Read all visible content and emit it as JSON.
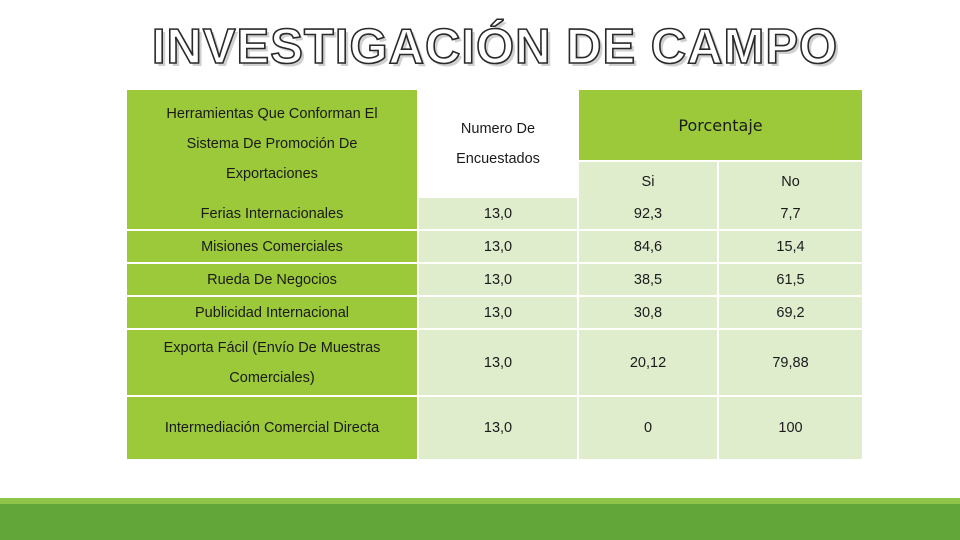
{
  "title": "INVESTIGACIÓN DE CAMPO",
  "table": {
    "header": {
      "tool_lines": [
        "Herramientas Que Conforman El",
        "Sistema De Promoción De",
        "Exportaciones"
      ],
      "count_lines": [
        "Numero De",
        "Encuestados"
      ],
      "percent": "Porcentaje",
      "yes": "Si",
      "no": "No"
    },
    "rows": [
      {
        "name_lines": [
          "Ferias Internacionales"
        ],
        "count": "13,0",
        "yes": "92,3",
        "no": "7,7"
      },
      {
        "name_lines": [
          "Misiones Comerciales"
        ],
        "count": "13,0",
        "yes": "84,6",
        "no": "15,4"
      },
      {
        "name_lines": [
          "Rueda De Negocios"
        ],
        "count": "13,0",
        "yes": "38,5",
        "no": "61,5"
      },
      {
        "name_lines": [
          "Publicidad Internacional"
        ],
        "count": "13,0",
        "yes": "30,8",
        "no": "69,2"
      },
      {
        "name_lines": [
          "Exporta Fácil (Envío De Muestras",
          "Comerciales)"
        ],
        "count": "13,0",
        "yes": "20,12",
        "no": "79,88"
      },
      {
        "name_lines": [
          "Intermediación Comercial Directa"
        ],
        "count": "13,0",
        "yes": "0",
        "no": "100"
      }
    ]
  },
  "colors": {
    "header_green": "#9cc93a",
    "cell_light_green": "#dfedcd",
    "footer_light": "#8fc44a",
    "footer_dark": "#62a539"
  }
}
